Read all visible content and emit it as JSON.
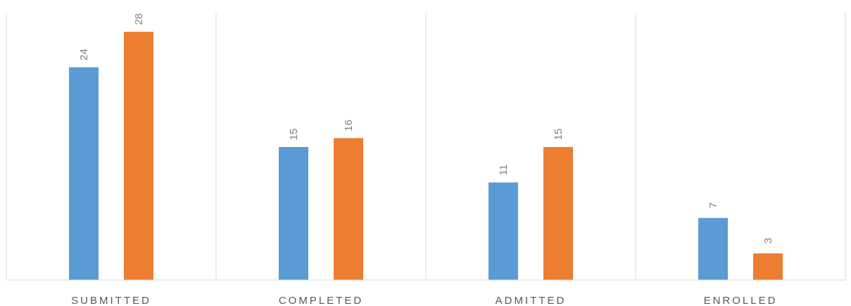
{
  "chart_data": {
    "type": "bar",
    "categories": [
      "SUBMITTED",
      "COMPLETED",
      "ADMITTED",
      "ENROLLED"
    ],
    "series": [
      {
        "values": [
          24,
          15,
          11,
          7
        ],
        "color": "#5B9BD5"
      },
      {
        "values": [
          28,
          16,
          15,
          3
        ],
        "color": "#ED7D31"
      }
    ],
    "ylim": [
      0,
      30
    ],
    "grid": false,
    "category_separators": true,
    "data_labels": true,
    "data_label_rotation": "vertical",
    "legend": "none",
    "title": "",
    "xlabel": "",
    "ylabel": ""
  }
}
